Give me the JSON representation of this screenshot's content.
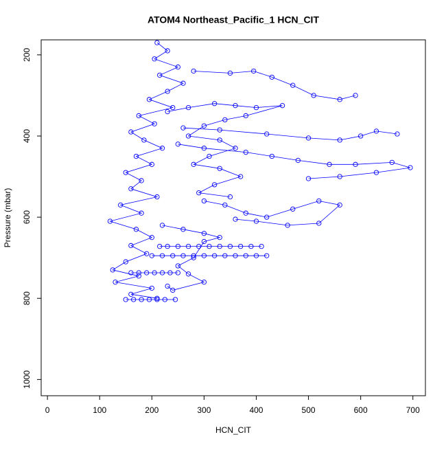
{
  "chart_data": {
    "type": "scatter-line",
    "title": "ATOM4 Northeast_Pacific_1 HCN_CIT",
    "x_label": "HCN_CIT",
    "y_label": "Pressure (mbar)",
    "color": "#0000ff",
    "xlim": [
      -12,
      724
    ],
    "ylim": [
      163,
      1040
    ],
    "y_reversed": true,
    "xticks": [
      0,
      100,
      200,
      300,
      400,
      500,
      600,
      700
    ],
    "yticks": [
      200,
      400,
      600,
      800,
      1000
    ],
    "x": [
      210,
      230,
      205,
      250,
      215,
      260,
      230,
      195,
      240,
      175,
      205,
      160,
      185,
      220,
      170,
      200,
      150,
      180,
      160,
      210,
      140,
      180,
      120,
      170,
      200,
      160,
      190,
      150,
      125,
      175,
      130,
      200,
      160,
      210,
      null,
      250,
      300,
      380,
      430,
      480,
      540,
      590,
      660,
      695,
      630,
      560,
      500,
      null,
      280,
      350,
      395,
      430,
      470,
      510,
      560,
      590,
      null,
      260,
      330,
      420,
      500,
      560,
      600,
      630,
      670,
      null,
      215,
      230,
      250,
      270,
      290,
      310,
      330,
      350,
      370,
      390,
      410,
      null,
      200,
      220,
      240,
      260,
      280,
      300,
      320,
      340,
      360,
      380,
      400,
      420,
      null,
      160,
      175,
      190,
      205,
      220,
      235,
      250,
      null,
      150,
      165,
      180,
      195,
      210,
      225,
      245,
      null,
      300,
      340,
      380,
      420,
      470,
      520,
      560,
      520,
      460,
      400,
      360,
      null,
      230,
      270,
      320,
      360,
      400,
      450,
      380,
      340,
      300,
      270,
      330,
      360,
      310,
      280,
      330,
      370,
      320,
      290,
      350,
      null,
      220,
      260,
      300,
      330,
      300,
      280,
      250,
      270,
      300,
      240,
      230
    ],
    "values": [
      170,
      190,
      210,
      230,
      250,
      270,
      290,
      310,
      330,
      350,
      370,
      390,
      410,
      430,
      450,
      470,
      490,
      510,
      530,
      550,
      570,
      590,
      610,
      630,
      650,
      670,
      690,
      710,
      730,
      745,
      760,
      775,
      790,
      800,
      null,
      420,
      430,
      440,
      450,
      460,
      470,
      470,
      465,
      478,
      490,
      500,
      505,
      null,
      240,
      245,
      240,
      255,
      275,
      300,
      310,
      300,
      null,
      380,
      385,
      395,
      405,
      410,
      400,
      388,
      395,
      null,
      672,
      672,
      672,
      672,
      672,
      672,
      672,
      672,
      672,
      672,
      672,
      null,
      695,
      695,
      695,
      695,
      695,
      695,
      695,
      695,
      695,
      695,
      695,
      695,
      null,
      737,
      737,
      737,
      737,
      737,
      737,
      737,
      null,
      803,
      803,
      803,
      803,
      803,
      803,
      803,
      null,
      560,
      570,
      590,
      600,
      580,
      560,
      570,
      615,
      620,
      610,
      605,
      null,
      340,
      330,
      320,
      325,
      330,
      325,
      350,
      360,
      375,
      400,
      410,
      430,
      450,
      470,
      480,
      500,
      520,
      540,
      550,
      null,
      620,
      630,
      640,
      650,
      660,
      700,
      720,
      740,
      760,
      780,
      770
    ]
  }
}
